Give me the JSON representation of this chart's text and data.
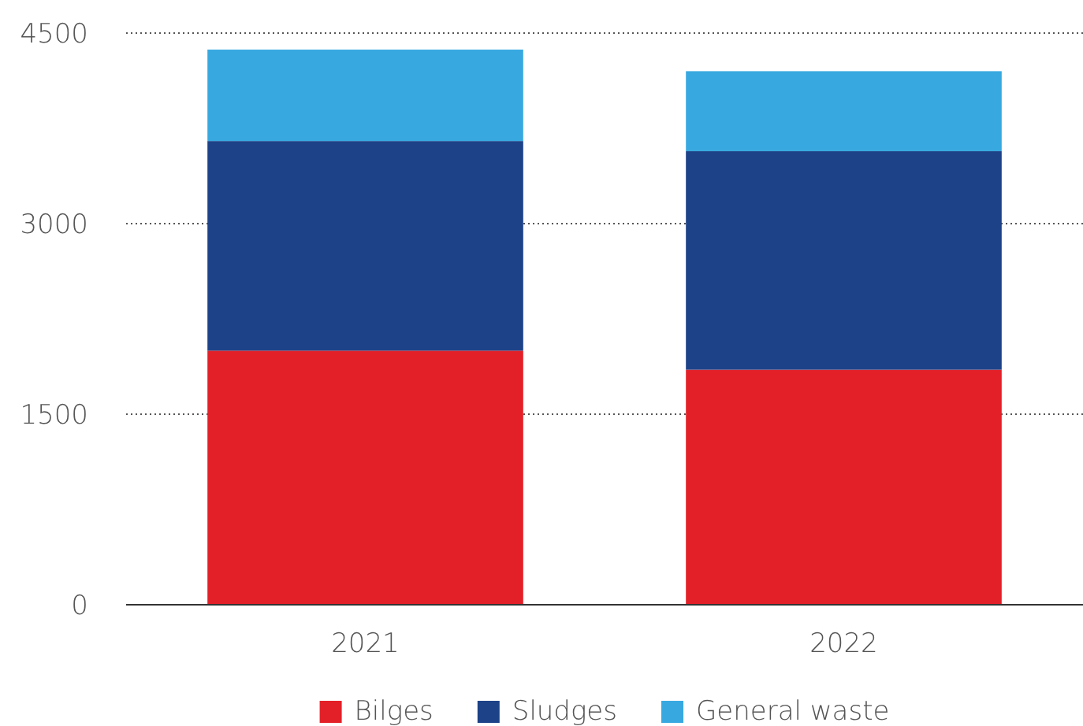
{
  "chart_data": {
    "type": "bar",
    "stacked": true,
    "categories": [
      "2021",
      "2022"
    ],
    "series": [
      {
        "name": "Bilges",
        "color": "#e32028",
        "values": [
          2000,
          1850
        ]
      },
      {
        "name": "Sludges",
        "color": "#1d4288",
        "values": [
          1650,
          1720
        ]
      },
      {
        "name": "General waste",
        "color": "#38a9e0",
        "values": [
          720,
          630
        ]
      }
    ],
    "ylim": [
      0,
      4500
    ],
    "yticks": [
      0,
      1500,
      3000,
      4500
    ],
    "grid": "y",
    "legend": "bottom"
  }
}
